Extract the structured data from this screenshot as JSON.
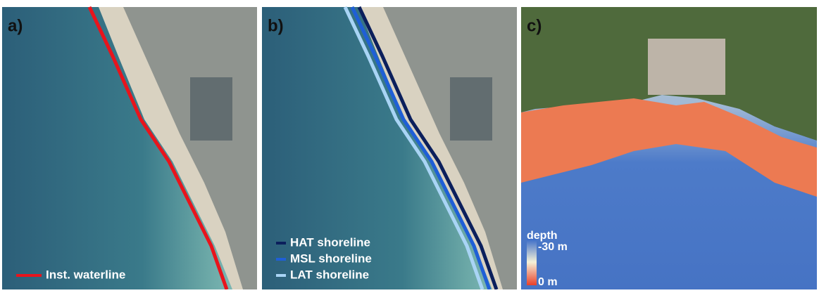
{
  "panels": [
    {
      "label": "a)",
      "legend": [
        {
          "label": "Inst. waterline",
          "color": "#e8141c"
        }
      ]
    },
    {
      "label": "b)",
      "legend": [
        {
          "label": "HAT shoreline",
          "color": "#0b1f5c"
        },
        {
          "label": "MSL shoreline",
          "color": "#1f5fd6"
        },
        {
          "label": "LAT shoreline",
          "color": "#a9d4f5"
        }
      ]
    },
    {
      "label": "c)",
      "colorbar": {
        "title": "depth",
        "top_label": "-30 m",
        "bottom_label": "0 m"
      }
    }
  ]
}
